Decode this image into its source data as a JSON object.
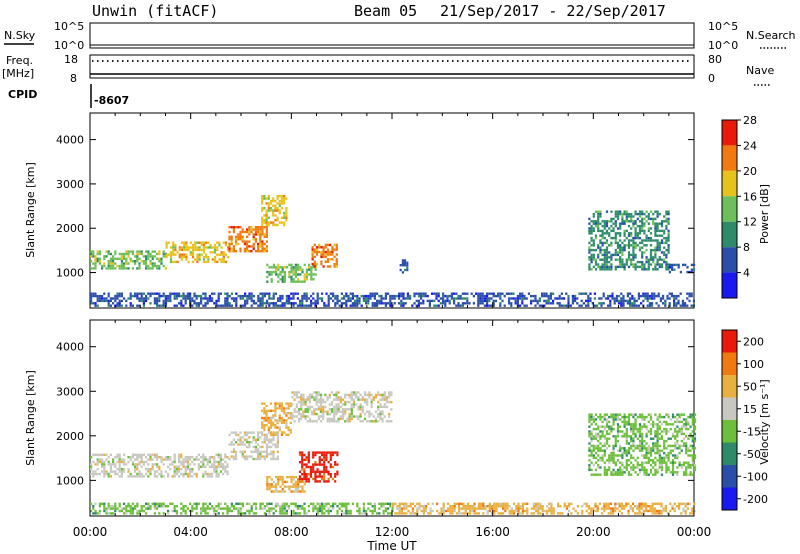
{
  "header": {
    "station": "Unwin (fitACF)",
    "beam": "Beam 05",
    "date_range": "21/Sep/2017 - 22/Sep/2017"
  },
  "params": {
    "nsky_label": "N.Sky",
    "nsky_ticks": [
      "10^5",
      "10^0"
    ],
    "nsearch_label": "N.Search",
    "nsearch_ticks": [
      "10^5",
      "10^0"
    ],
    "freq_label": "Freq.",
    "freq_unit": "[MHz]",
    "freq_ticks": [
      "18",
      "8"
    ],
    "nave_label": "Nave",
    "nave_ticks": [
      "80",
      "0"
    ],
    "cpid_label": "CPID",
    "cpid_value": "-8607"
  },
  "chart_data": [
    {
      "type": "heatmap",
      "name": "power-panel",
      "ylabel": "Slant Range [km]",
      "yticks": [
        1000,
        2000,
        3000,
        4000
      ],
      "ylim": [
        200,
        4600
      ],
      "xlim": [
        0,
        24
      ],
      "colorbar": {
        "label": "Power [dB]",
        "ticks": [
          "4",
          "8",
          "12",
          "16",
          "20",
          "24",
          "28"
        ],
        "colors": [
          "#1a1af0",
          "#2a4fa8",
          "#2e8b6a",
          "#6cbf5a",
          "#e8c21c",
          "#f07a10",
          "#e81a0a"
        ]
      },
      "regions": [
        {
          "t0": 0.0,
          "t1": 3.0,
          "r0": 1100,
          "r1": 1500,
          "level": 3
        },
        {
          "t0": 3.0,
          "t1": 5.5,
          "r0": 1250,
          "r1": 1700,
          "level": 4
        },
        {
          "t0": 5.5,
          "t1": 7.0,
          "r0": 1500,
          "r1": 2050,
          "level": 5
        },
        {
          "t0": 6.8,
          "t1": 7.8,
          "r0": 2050,
          "r1": 2750,
          "level": 4
        },
        {
          "t0": 7.0,
          "t1": 9.0,
          "r0": 800,
          "r1": 1200,
          "level": 3
        },
        {
          "t0": 8.8,
          "t1": 9.8,
          "r0": 1150,
          "r1": 1650,
          "level": 5
        },
        {
          "t0": 12.3,
          "t1": 12.6,
          "r0": 1000,
          "r1": 1300,
          "level": 1
        },
        {
          "t0": 19.8,
          "t1": 23.0,
          "r0": 1100,
          "r1": 2400,
          "level": 2
        },
        {
          "t0": 23.0,
          "t1": 24.0,
          "r0": 1000,
          "r1": 1200,
          "level": 1
        },
        {
          "t0": 0.0,
          "t1": 24.0,
          "r0": 250,
          "r1": 550,
          "level": 1
        }
      ]
    },
    {
      "type": "heatmap",
      "name": "velocity-panel",
      "ylabel": "Slant Range [km]",
      "yticks": [
        1000,
        2000,
        3000,
        4000
      ],
      "ylim": [
        200,
        4600
      ],
      "xlim": [
        0,
        24
      ],
      "xlabel": "Time UT",
      "xticks": [
        "00:00",
        "04:00",
        "08:00",
        "12:00",
        "16:00",
        "20:00",
        "00:00"
      ],
      "colorbar": {
        "label": "Velocity [m s⁻¹]",
        "ticks": [
          "200",
          "100",
          "50",
          "15",
          "-15",
          "-50",
          "-100",
          "-200"
        ],
        "colors": [
          "#1a1af0",
          "#2a4fa8",
          "#2e8b6a",
          "#6cbf3a",
          "#c8c8c0",
          "#e8b040",
          "#f07a10",
          "#e81a0a"
        ]
      },
      "regions": [
        {
          "t0": 0.0,
          "t1": 5.5,
          "r0": 1100,
          "r1": 1600,
          "level": 4
        },
        {
          "t0": 5.5,
          "t1": 7.5,
          "r0": 1500,
          "r1": 2100,
          "level": 4
        },
        {
          "t0": 6.8,
          "t1": 8.0,
          "r0": 2000,
          "r1": 2750,
          "level": 5
        },
        {
          "t0": 7.0,
          "t1": 8.5,
          "r0": 750,
          "r1": 1100,
          "level": 5
        },
        {
          "t0": 8.3,
          "t1": 9.8,
          "r0": 1000,
          "r1": 1650,
          "level": 7
        },
        {
          "t0": 8.0,
          "t1": 12.0,
          "r0": 2300,
          "r1": 3000,
          "level": 4
        },
        {
          "t0": 19.8,
          "t1": 24.0,
          "r0": 1100,
          "r1": 2500,
          "level": 3
        },
        {
          "t0": 12.0,
          "t1": 24.0,
          "r0": 250,
          "r1": 500,
          "level": 5
        },
        {
          "t0": 0.0,
          "t1": 12.0,
          "r0": 250,
          "r1": 500,
          "level": 3
        }
      ]
    }
  ]
}
